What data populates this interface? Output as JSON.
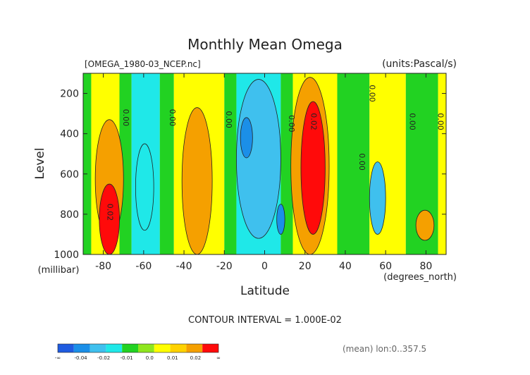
{
  "chart_data": {
    "type": "heatmap",
    "title": "Monthly Mean Omega",
    "file_label": "[OMEGA_1980-03_NCEP.nc]",
    "units_label": "(units:Pascal/s)",
    "xlabel": "Latitude",
    "x_unit_label": "(degrees_north)",
    "ylabel": "Level",
    "y_unit_label": "(millibar)",
    "xlim": [
      -90,
      90
    ],
    "ylim": [
      1000,
      100
    ],
    "x_ticks": [
      "-80",
      "-60",
      "-40",
      "-20",
      "0",
      "20",
      "40",
      "60",
      "80"
    ],
    "x_tick_values": [
      -80,
      -60,
      -40,
      -20,
      0,
      20,
      40,
      60,
      80
    ],
    "y_ticks": [
      "200",
      "400",
      "600",
      "800",
      "1000"
    ],
    "y_tick_values": [
      200,
      400,
      600,
      800,
      1000
    ],
    "contour_interval_text": "CONTOUR INTERVAL = 1.000E-02",
    "mean_text": "(mean) lon:0..357.5",
    "colorbar": {
      "colors": [
        "#1f5be0",
        "#1b8fe8",
        "#3fc0ee",
        "#1fe8e8",
        "#22d222",
        "#8ee61e",
        "#ffff00",
        "#ffd200",
        "#f5a000",
        "#ff0a0a"
      ],
      "labels": [
        "-∞",
        "-0.04",
        "-0.02",
        "-0.01",
        "0.0",
        "0.01",
        "0.02",
        "∞"
      ]
    },
    "bands": [
      {
        "from": -90,
        "to": -86,
        "color": "#22d222"
      },
      {
        "from": -86,
        "to": -72,
        "color": "#ffff00"
      },
      {
        "from": -72,
        "to": -66,
        "color": "#22d222"
      },
      {
        "from": -66,
        "to": -52,
        "color": "#1fe8e8"
      },
      {
        "from": -52,
        "to": -45,
        "color": "#22d222"
      },
      {
        "from": -45,
        "to": -20,
        "color": "#ffff00"
      },
      {
        "from": -20,
        "to": -14,
        "color": "#22d222"
      },
      {
        "from": -14,
        "to": 0,
        "color": "#1fe8e8"
      },
      {
        "from": 0,
        "to": 8,
        "color": "#1fe8e8"
      },
      {
        "from": 8,
        "to": 14,
        "color": "#22d222"
      },
      {
        "from": 14,
        "to": 36,
        "color": "#ffff00"
      },
      {
        "from": 36,
        "to": 52,
        "color": "#22d222"
      },
      {
        "from": 52,
        "to": 70,
        "color": "#ffff00"
      },
      {
        "from": 70,
        "to": 86,
        "color": "#22d222"
      },
      {
        "from": 86,
        "to": 90,
        "color": "#ffff00"
      }
    ],
    "regions": [
      {
        "color": "#f5a000",
        "lat": [
          -84,
          -70
        ],
        "lev": [
          330,
          920
        ]
      },
      {
        "color": "#ff0a0a",
        "lat": [
          -82,
          -72
        ],
        "lev": [
          650,
          1000
        ]
      },
      {
        "color": "#1fe8e8",
        "lat": [
          -64,
          -55
        ],
        "lev": [
          450,
          880
        ]
      },
      {
        "color": "#f5a000",
        "lat": [
          -41,
          -26
        ],
        "lev": [
          270,
          1000
        ]
      },
      {
        "color": "#3fc0ee",
        "lat": [
          -14,
          8
        ],
        "lev": [
          130,
          920
        ]
      },
      {
        "color": "#1b8fe8",
        "lat": [
          -12,
          -6
        ],
        "lev": [
          320,
          520
        ]
      },
      {
        "color": "#1b8fe8",
        "lat": [
          6,
          10
        ],
        "lev": [
          750,
          900
        ]
      },
      {
        "color": "#f5a000",
        "lat": [
          13,
          32
        ],
        "lev": [
          120,
          1000
        ]
      },
      {
        "color": "#ff0a0a",
        "lat": [
          18,
          30
        ],
        "lev": [
          240,
          900
        ]
      },
      {
        "color": "#3fc0ee",
        "lat": [
          52,
          60
        ],
        "lev": [
          540,
          900
        ]
      },
      {
        "color": "#f5a000",
        "lat": [
          75,
          84
        ],
        "lev": [
          780,
          930
        ]
      }
    ],
    "contour_labels": [
      {
        "text": "0.00",
        "lat": -70,
        "lev": 320
      },
      {
        "text": "0.00",
        "lat": -47,
        "lev": 320
      },
      {
        "text": "0.00",
        "lat": -19,
        "lev": 330
      },
      {
        "text": "0.00",
        "lat": 12,
        "lev": 350
      },
      {
        "text": "0.02",
        "lat": 23,
        "lev": 340
      },
      {
        "text": "0.00",
        "lat": 47,
        "lev": 540
      },
      {
        "text": "0.00",
        "lat": 52,
        "lev": 200
      },
      {
        "text": "0.00",
        "lat": 72,
        "lev": 340
      },
      {
        "text": "0.00",
        "lat": 86,
        "lev": 340
      },
      {
        "text": "0.02",
        "lat": -78,
        "lev": 790
      }
    ]
  }
}
